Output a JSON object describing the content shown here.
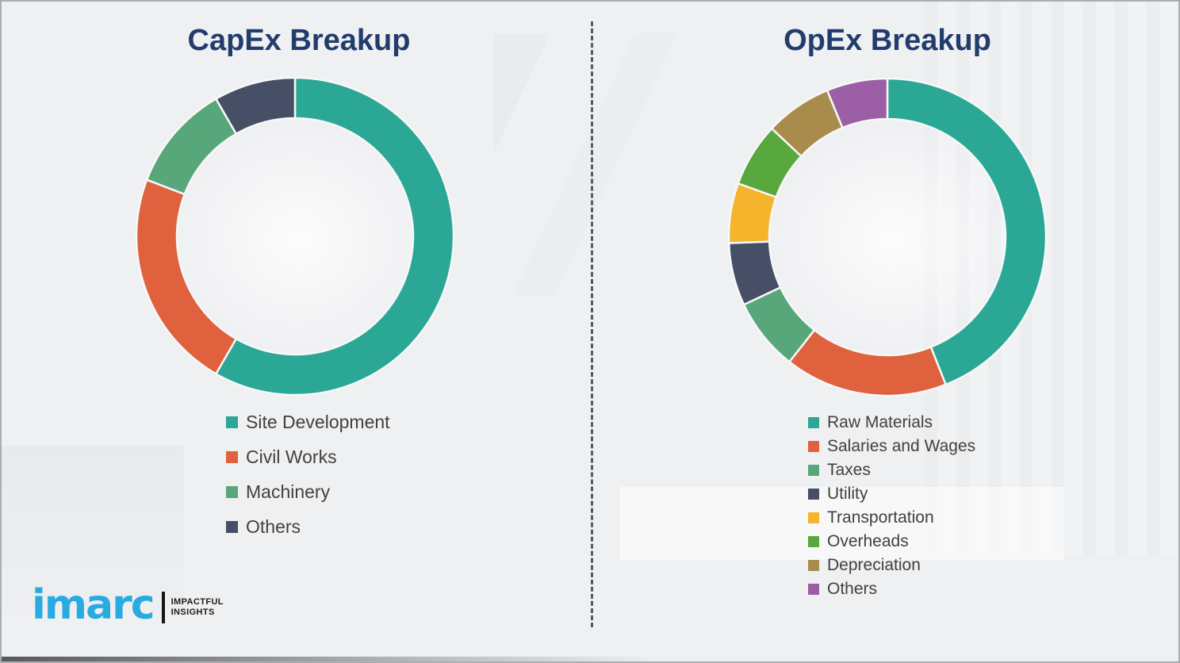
{
  "page": {
    "background_color": "#eff0f2",
    "divider_style": "vertical-dashed-gray"
  },
  "title_color": "#223d6d",
  "chart_data": [
    {
      "type": "pie",
      "donut": true,
      "title": "CapEx Breakup",
      "legend_position": "bottom-left",
      "start_angle_deg": 0,
      "direction": "clockwise",
      "categories": [
        "Site Development",
        "Civil Works",
        "Machinery",
        "Others"
      ],
      "values": [
        58.3,
        22.5,
        10.9,
        8.3
      ],
      "colors": [
        "#2aa795",
        "#e0613e",
        "#57a77b",
        "#474f67"
      ]
    },
    {
      "type": "pie",
      "donut": true,
      "title": "OpEx Breakup",
      "legend_position": "bottom-left",
      "start_angle_deg": 0,
      "direction": "clockwise",
      "categories": [
        "Raw Materials",
        "Salaries and Wages",
        "Taxes",
        "Utility",
        "Transportation",
        "Overheads",
        "Depreciation",
        "Others"
      ],
      "values": [
        44.0,
        16.6,
        7.4,
        6.4,
        6.1,
        6.5,
        6.8,
        6.2
      ],
      "colors": [
        "#2aa795",
        "#e0613e",
        "#57a77b",
        "#474f67",
        "#f5b42c",
        "#58a83d",
        "#a98b4c",
        "#9c5fa6"
      ]
    }
  ],
  "logo": {
    "brand": "imarc",
    "brand_color": "#29abe2",
    "tagline_line1": "IMPACTFUL",
    "tagline_line2": "INSIGHTS"
  }
}
